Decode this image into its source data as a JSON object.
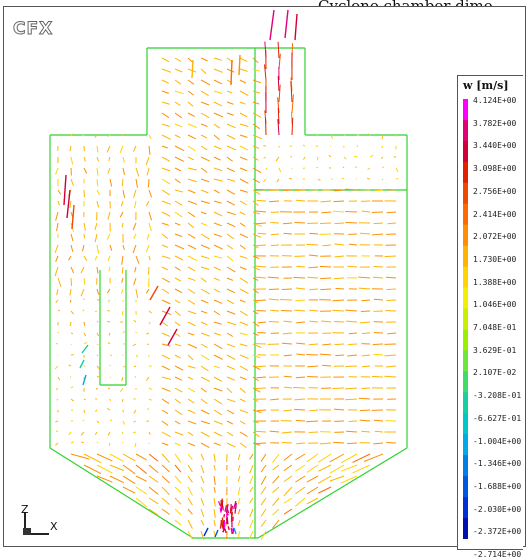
{
  "caption": "Cyclone chamber dime",
  "logo": "CFX",
  "legend": {
    "title": "w [m/s]",
    "labels": [
      "4.124E+00",
      "3.782E+00",
      "3.440E+00",
      "3.098E+00",
      "2.756E+00",
      "2.414E+00",
      "2.072E+00",
      "1.730E+00",
      "1.388E+00",
      "1.046E+00",
      "7.048E-01",
      "3.629E-01",
      "2.107E-02",
      "-3.208E-01",
      "-6.627E-01",
      "-1.004E+00",
      "-1.346E+00",
      "-1.688E+00",
      "-2.030E+00",
      "-2.372E+00",
      "-2.714E+00"
    ],
    "colors": [
      "#ff00ff",
      "#e2007a",
      "#d10038",
      "#e32000",
      "#f04a00",
      "#ff6a00",
      "#ff8f00",
      "#ffb400",
      "#ffd400",
      "#f2ef00",
      "#c8f000",
      "#9bef00",
      "#6ee838",
      "#3fdc6a",
      "#17cfa0",
      "#00c8c8",
      "#00a9e8",
      "#007fe8",
      "#0058e0",
      "#0030d8",
      "#0010b0"
    ]
  },
  "axes": {
    "z_label": "Z",
    "x_label": "X"
  },
  "outline_color": "#2fd12f"
}
